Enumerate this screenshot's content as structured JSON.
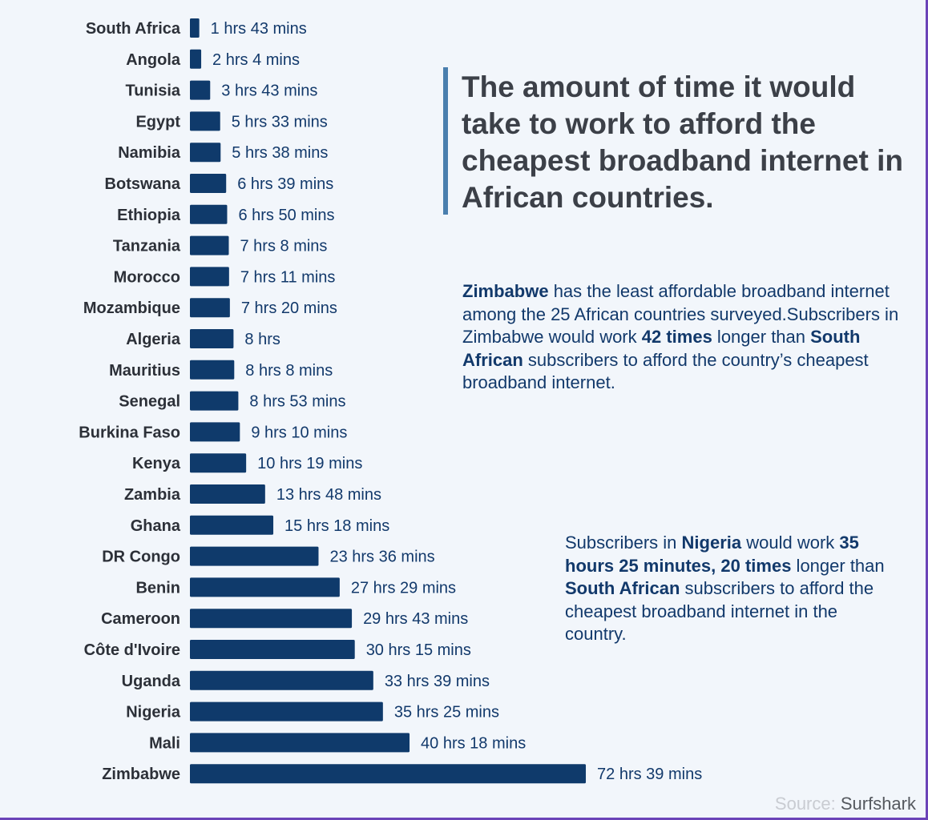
{
  "title": "The amount of time it would take to work to afford the cheapest broadband internet in African countries.",
  "chart_data": {
    "type": "bar",
    "orientation": "horizontal",
    "title": "The amount of time it would take to work to afford the cheapest broadband internet in African countries.",
    "xlabel": "",
    "ylabel": "",
    "unit": "hours",
    "xlim": [
      0,
      80
    ],
    "grid": false,
    "categories": [
      "South Africa",
      "Angola",
      "Tunisia",
      "Egypt",
      "Namibia",
      "Botswana",
      "Ethiopia",
      "Tanzania",
      "Morocco",
      "Mozambique",
      "Algeria",
      "Mauritius",
      "Senegal",
      "Burkina Faso",
      "Kenya",
      "Zambia",
      "Ghana",
      "DR Congo",
      "Benin",
      "Cameroon",
      "Côte d'Ivoire",
      "Uganda",
      "Nigeria",
      "Mali",
      "Zimbabwe"
    ],
    "values": [
      1.717,
      2.067,
      3.717,
      5.55,
      5.633,
      6.65,
      6.833,
      7.133,
      7.183,
      7.333,
      8,
      8.133,
      8.883,
      9.167,
      10.317,
      13.8,
      15.3,
      23.6,
      27.483,
      29.717,
      30.25,
      33.65,
      35.417,
      40.3,
      72.65
    ],
    "value_labels": [
      "1 hrs 43 mins",
      "2 hrs 4 mins",
      "3 hrs 43 mins",
      "5 hrs 33 mins",
      "5 hrs 38 mins",
      "6 hrs 39 mins",
      "6 hrs 50 mins",
      "7 hrs 8 mins",
      "7 hrs 11 mins",
      "7 hrs 20 mins",
      "8 hrs",
      "8 hrs 8 mins",
      "8 hrs 53 mins",
      "9 hrs 10 mins",
      "10 hrs 19 mins",
      "13 hrs 48 mins",
      "15 hrs 18 mins",
      "23 hrs 36 mins",
      "27 hrs 29 mins",
      "29 hrs 43 mins",
      "30 hrs 15 mins",
      "33 hrs 39 mins",
      "35 hrs 25 mins",
      "40 hrs 18 mins",
      "72 hrs 39 mins"
    ]
  },
  "notes": {
    "zimbabwe": {
      "p1": "Zimbabwe",
      "p2": " has the least affordable broadband internet among the 25 African countries surveyed.Subscribers in Zimbabwe would work ",
      "p3": "42 times",
      "p4": " longer than ",
      "p5": "South African",
      "p6": " subscribers to afford the country’s cheapest broadband internet."
    },
    "nigeria": {
      "p1": "Subscribers in ",
      "p2": "Nigeria",
      "p3": " would work ",
      "p4": "35 hours 25 minutes, 20 times",
      "p5": " longer than ",
      "p6": "South African",
      "p7": " subscribers to afford the cheapest broadband internet in the country."
    }
  },
  "source": {
    "label": "Source: ",
    "name": "Surfshark"
  },
  "colors": {
    "bar": "#0f3a6b",
    "value_text": "#12396b",
    "country_text": "#2c3038",
    "title_text": "#3c4048",
    "accent_rule": "#4a7fae",
    "background": "#f2f6fb"
  }
}
